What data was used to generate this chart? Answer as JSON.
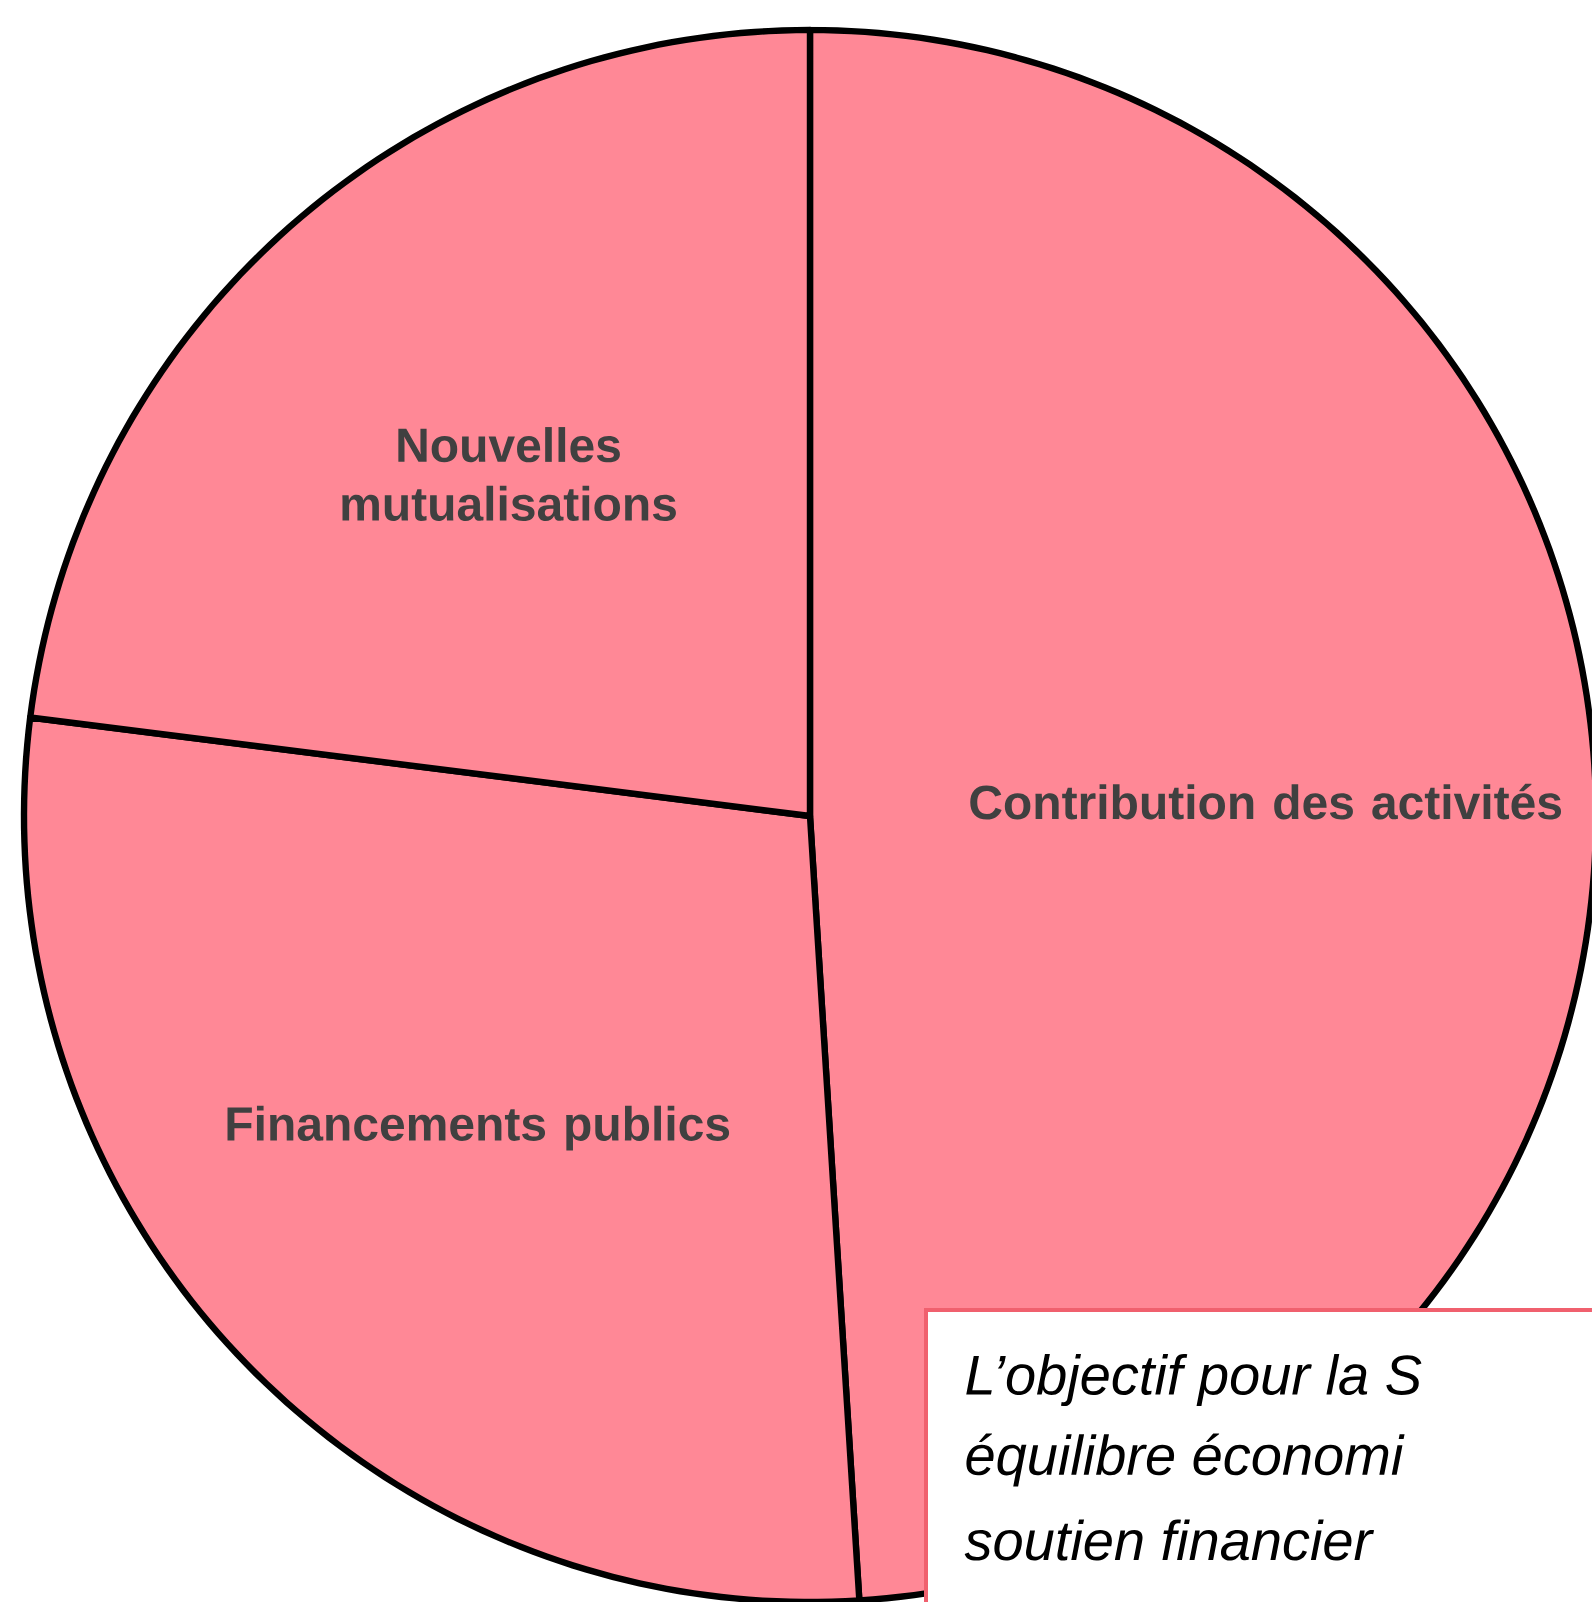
{
  "chart_data": {
    "type": "pie",
    "categories": [
      "Contribution des activités",
      "Financements publics",
      "Nouvelles mutualisations"
    ],
    "values": [
      49,
      28,
      23
    ],
    "colors": [
      "#ff8896",
      "#ff8896",
      "#ff8896"
    ],
    "annotations": [
      "L’objectif pour la S",
      "équilibre économi",
      "soutien financier"
    ]
  }
}
